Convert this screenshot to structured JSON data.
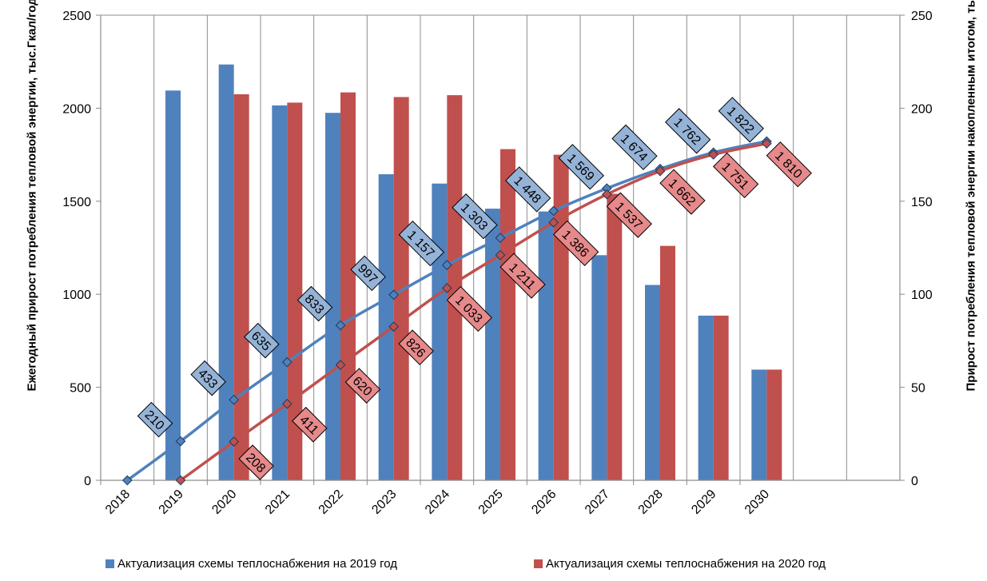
{
  "chart_data": {
    "type": "bar+line",
    "categories": [
      "2018",
      "2019",
      "2020",
      "2021",
      "2022",
      "2023",
      "2024",
      "2025",
      "2026",
      "2027",
      "2028",
      "2029",
      "2030"
    ],
    "ylabel": "Ежегодный прирост потребления тепловой энергии, тыс.Гкал/год",
    "ylabel_right": "Прирост потребления тепловой энергии накопленным итогом, тыс. Гкал/год",
    "ylim": [
      0,
      2500
    ],
    "y_ticks": [
      0,
      500,
      1000,
      1500,
      2000,
      2500
    ],
    "ylim_right": [
      0,
      250
    ],
    "y_ticks_right": [
      0,
      50,
      100,
      150,
      200,
      250
    ],
    "grid": "vertical",
    "legend_position": "bottom",
    "bar_series": [
      {
        "name": "Актуализация схемы теплоснабжения на 2019 год",
        "color": "#4f81bd",
        "values": [
          null,
          2095,
          2235,
          2015,
          1975,
          1645,
          1595,
          1460,
          1445,
          1210,
          1050,
          885,
          595
        ]
      },
      {
        "name": "Актуализация схемы теплоснабжения на 2020 год",
        "color": "#c0504d",
        "values": [
          null,
          null,
          2075,
          2030,
          2085,
          2060,
          2070,
          1780,
          1750,
          1540,
          1260,
          885,
          595
        ]
      }
    ],
    "line_series": [
      {
        "name": "Актуализация схемы теплоснабжения на 2019 год",
        "color": "#4f81bd",
        "axis": "right",
        "values": [
          0,
          21.0,
          43.3,
          63.5,
          83.3,
          99.7,
          115.7,
          130.3,
          144.8,
          156.9,
          167.4,
          176.2,
          182.2
        ],
        "labels": [
          "",
          "210",
          "433",
          "635",
          "833",
          "997",
          "1 157",
          "1 303",
          "1 448",
          "1 569",
          "1 674",
          "1 762",
          "1 822"
        ]
      },
      {
        "name": "Актуализация схемы теплоснабжения на 2020 год",
        "color": "#c0504d",
        "axis": "right",
        "values": [
          null,
          0,
          20.8,
          41.1,
          62.0,
          82.6,
          103.3,
          121.1,
          138.6,
          153.7,
          166.2,
          175.1,
          181.0
        ],
        "labels": [
          "",
          "",
          "208",
          "411",
          "620",
          "826",
          "1 033",
          "1 211",
          "1 386",
          "1 537",
          "1 662",
          "1 751",
          "1 810"
        ]
      }
    ]
  },
  "legend": {
    "series1": "Актуализация схемы теплоснабжения на 2019 год",
    "series2": "Актуализация схемы теплоснабжения на 2020 год"
  }
}
